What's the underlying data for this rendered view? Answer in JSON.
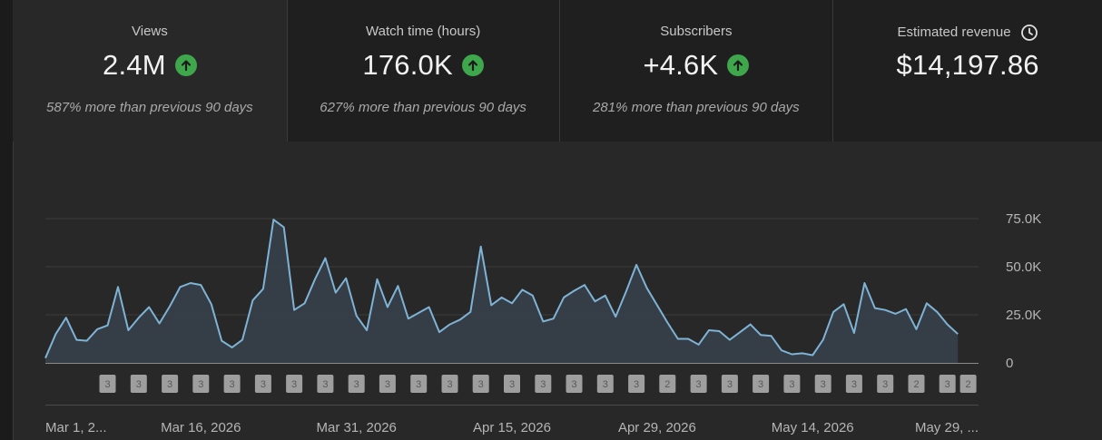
{
  "metrics": [
    {
      "label": "Views",
      "value": "2.4M",
      "delta": "587% more than previous 90 days",
      "trend": "up"
    },
    {
      "label": "Watch time (hours)",
      "value": "176.0K",
      "delta": "627% more than previous 90 days",
      "trend": "up"
    },
    {
      "label": "Subscribers",
      "value": "+4.6K",
      "delta": "281% more than previous 90 days",
      "trend": "up"
    },
    {
      "label": "Estimated revenue",
      "value": "$14,197.86",
      "delta": "",
      "trend": "none"
    }
  ],
  "colors": {
    "accent_line": "#7fb3d5",
    "area_fill": "#37414b",
    "up_icon": "#3ea64b",
    "badge": "#9e9e9e"
  },
  "chart_data": {
    "type": "area",
    "title": "",
    "xlabel": "",
    "ylabel": "",
    "ylim": [
      0,
      75000
    ],
    "y_ticks": [
      {
        "value": 75000,
        "label": "75.0K"
      },
      {
        "value": 50000,
        "label": "50.0K"
      },
      {
        "value": 25000,
        "label": "25.0K"
      },
      {
        "value": 0,
        "label": "0"
      }
    ],
    "x_tick_labels": [
      "Mar 1, 2...",
      "Mar 16, 2026",
      "Mar 31, 2026",
      "Apr 15, 2026",
      "Apr 29, 2026",
      "May 14, 2026",
      "May 29, ..."
    ],
    "x_tick_days": [
      0,
      15,
      30,
      45,
      59,
      74,
      89
    ],
    "days": 91,
    "series": [
      {
        "values": [
          2500,
          15000,
          23500,
          12000,
          11500,
          17500,
          19500,
          39500,
          17000,
          23500,
          29000,
          20500,
          29500,
          39500,
          41500,
          40500,
          30500,
          11500,
          8000,
          12000,
          32500,
          38500,
          74500,
          70500,
          27500,
          31000,
          43500,
          54500,
          36500,
          44000,
          24500,
          17000,
          43500,
          29000,
          40000,
          23000,
          26000,
          29000,
          16000,
          20000,
          22500,
          26500,
          60500,
          30000,
          34000,
          31000,
          38000,
          35000,
          21500,
          23000,
          34000,
          37500,
          40500,
          32000,
          35000,
          24000,
          37000,
          51000,
          39000,
          30000,
          21000,
          12500,
          12500,
          9500,
          17000,
          16500,
          12000,
          16000,
          20000,
          14500,
          14000,
          6500,
          4500,
          5000,
          4000,
          12000,
          26500,
          30500,
          15500,
          41500,
          28500,
          27500,
          25500,
          28000,
          17500,
          31000,
          26500,
          20000,
          15000
        ]
      }
    ],
    "annotations": {
      "days": [
        6,
        9,
        12,
        15,
        18,
        21,
        24,
        27,
        30,
        33,
        36,
        39,
        42,
        45,
        48,
        51,
        54,
        57,
        60,
        63,
        66,
        69,
        72,
        75,
        78,
        81,
        84,
        87,
        89
      ],
      "labels": [
        "3",
        "3",
        "3",
        "3",
        "3",
        "3",
        "3",
        "3",
        "3",
        "3",
        "3",
        "3",
        "3",
        "3",
        "3",
        "3",
        "3",
        "3",
        "2",
        "3",
        "3",
        "3",
        "3",
        "3",
        "3",
        "3",
        "2",
        "3",
        "2"
      ]
    },
    "grid": true,
    "legend": "none"
  }
}
